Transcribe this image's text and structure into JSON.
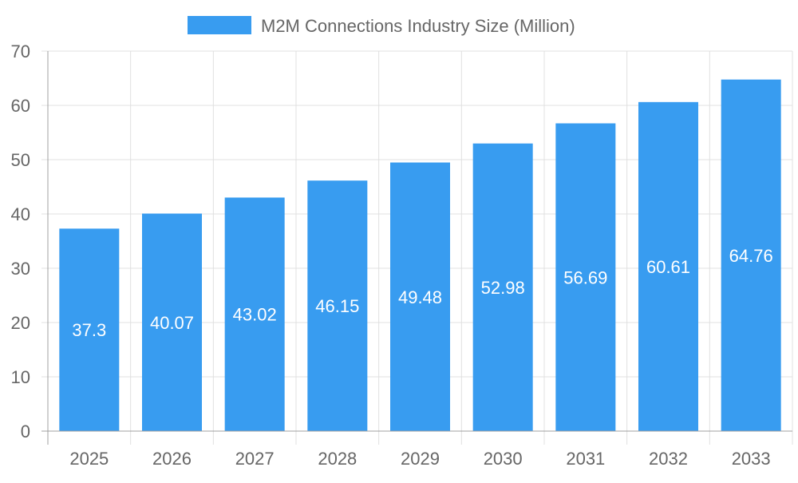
{
  "chart_data": {
    "type": "bar",
    "title": "",
    "xlabel": "",
    "ylabel": "",
    "categories": [
      "2025",
      "2026",
      "2027",
      "2028",
      "2029",
      "2030",
      "2031",
      "2032",
      "2033"
    ],
    "series": [
      {
        "name": "M2M Connections Industry Size (Million)",
        "values": [
          37.3,
          40.07,
          43.02,
          46.15,
          49.48,
          52.98,
          56.69,
          60.61,
          64.76
        ]
      }
    ],
    "data_labels": [
      "37.3",
      "40.07",
      "43.02",
      "46.15",
      "49.48",
      "52.98",
      "56.69",
      "60.61",
      "64.76"
    ],
    "ylim": [
      0,
      70
    ],
    "yticks": [
      "0",
      "10",
      "20",
      "30",
      "40",
      "50",
      "60",
      "70"
    ],
    "grid": true,
    "legend_position": "top",
    "colors": {
      "bar": "#389cf0",
      "grid": "#e0e0e0",
      "axis": "#a0a0a0",
      "text": "#666666",
      "label": "#ffffff"
    }
  }
}
